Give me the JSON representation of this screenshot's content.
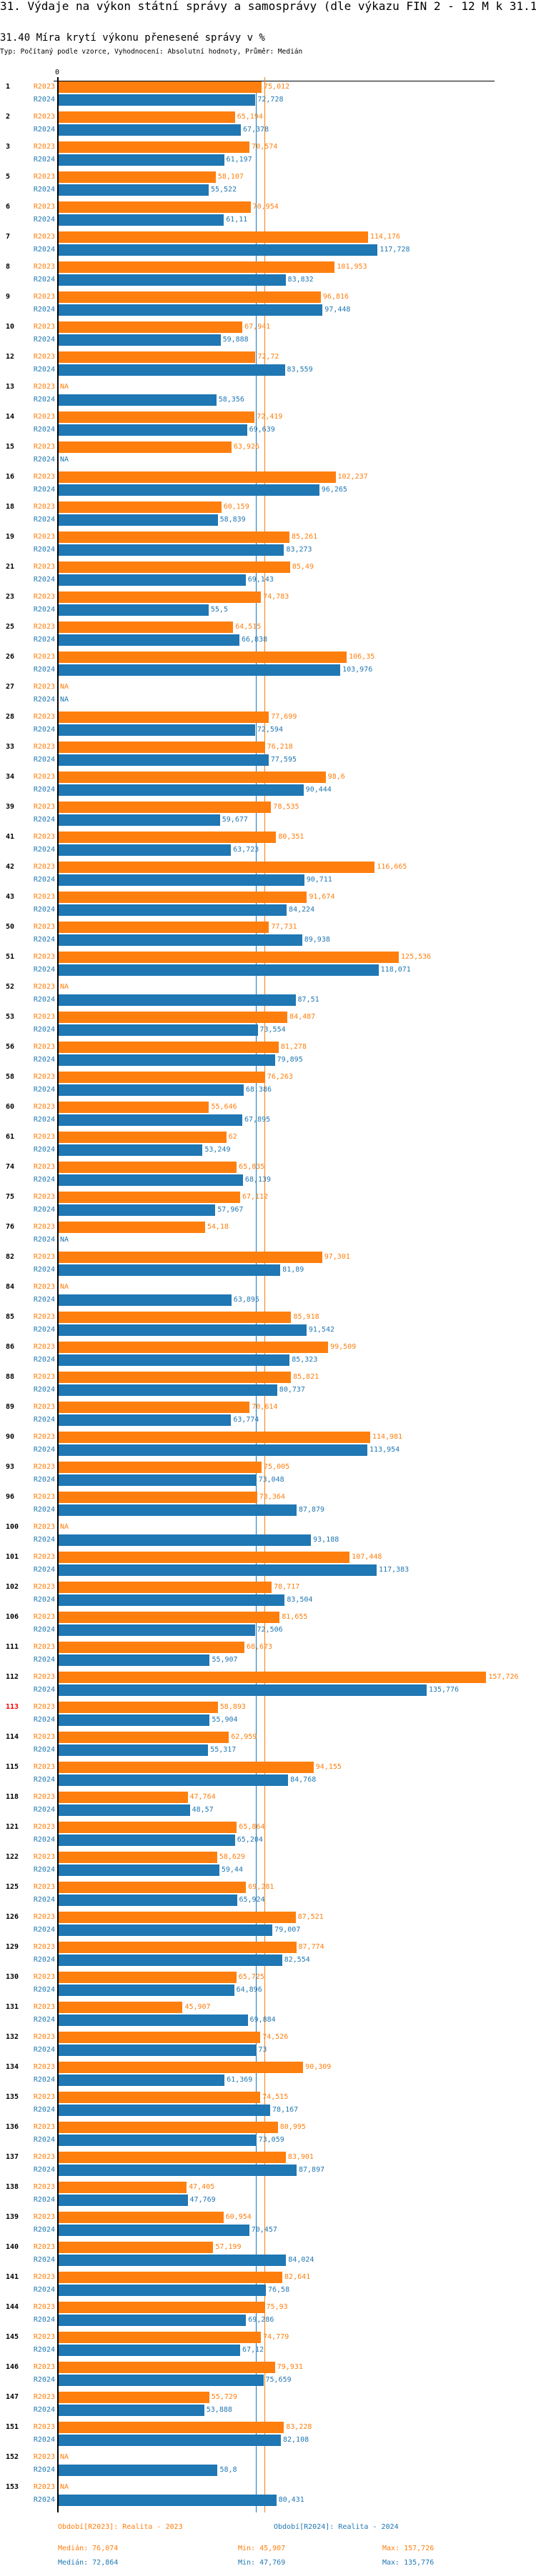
{
  "header": {
    "title": "31. Výdaje na výkon státní správy a samosprávy (dle výkazu FIN 2 - 12 M k 31.12.)",
    "heading": "31.40 Míra krytí výkonu přenesené správy v %",
    "subtitle": "Typ: Počítaný podle vzorce, Vyhodnocení: Absolutní hodnoty, Průměr: Medián"
  },
  "chart_data": {
    "type": "bar",
    "orientation": "horizontal",
    "axis_zero_label": "0",
    "xlim": [
      0,
      160
    ],
    "na_label": "NA",
    "highlighted_category": "113",
    "highlight_color": "#ff0000",
    "categories": [
      "1",
      "2",
      "3",
      "5",
      "6",
      "7",
      "8",
      "9",
      "10",
      "12",
      "13",
      "14",
      "15",
      "16",
      "18",
      "19",
      "21",
      "23",
      "25",
      "26",
      "27",
      "28",
      "33",
      "34",
      "39",
      "41",
      "42",
      "43",
      "50",
      "51",
      "52",
      "53",
      "56",
      "58",
      "60",
      "61",
      "74",
      "75",
      "76",
      "82",
      "84",
      "85",
      "86",
      "88",
      "89",
      "90",
      "93",
      "96",
      "100",
      "101",
      "102",
      "106",
      "111",
      "112",
      "113",
      "114",
      "115",
      "118",
      "121",
      "122",
      "125",
      "126",
      "129",
      "130",
      "131",
      "132",
      "134",
      "135",
      "136",
      "137",
      "138",
      "139",
      "140",
      "141",
      "144",
      "145",
      "146",
      "147",
      "151",
      "152",
      "153"
    ],
    "series": [
      {
        "name": "R2023",
        "color": "#ff7f0e",
        "median": 76.074,
        "values": [
          75.012,
          65.194,
          70.574,
          58.107,
          70.954,
          114.176,
          101.953,
          96.816,
          67.941,
          72.72,
          null,
          72.419,
          63.926,
          102.237,
          60.159,
          85.261,
          85.49,
          74.783,
          64.515,
          106.35,
          null,
          77.699,
          76.218,
          98.6,
          78.535,
          80.351,
          116.665,
          91.674,
          77.731,
          125.536,
          null,
          84.487,
          81.278,
          76.263,
          55.646,
          62,
          65.835,
          67.112,
          54.18,
          97.301,
          null,
          85.918,
          99.509,
          85.821,
          70.614,
          114.981,
          75.005,
          73.364,
          null,
          107.448,
          78.717,
          81.655,
          68.673,
          157.726,
          58.893,
          62.959,
          94.155,
          47.764,
          65.864,
          58.629,
          69.281,
          87.521,
          87.774,
          65.725,
          45.907,
          74.526,
          90.309,
          74.515,
          80.995,
          83.901,
          47.405,
          60.954,
          57.199,
          82.641,
          75.93,
          74.779,
          79.931,
          55.729,
          83.228,
          null,
          null
        ]
      },
      {
        "name": "R2024",
        "color": "#1f77b4",
        "median": 72.864,
        "values": [
          72.728,
          67.378,
          61.197,
          55.522,
          61.11,
          117.728,
          83.832,
          97.448,
          59.888,
          83.559,
          58.356,
          69.639,
          null,
          96.265,
          58.839,
          83.273,
          69.143,
          55.5,
          66.838,
          103.976,
          null,
          72.594,
          77.595,
          90.444,
          59.677,
          63.723,
          90.711,
          84.224,
          89.938,
          118.071,
          87.51,
          73.554,
          79.895,
          68.386,
          67.895,
          53.249,
          68.139,
          57.967,
          null,
          81.89,
          63.895,
          91.542,
          85.323,
          80.737,
          63.774,
          113.954,
          73.048,
          87.879,
          93.188,
          117.383,
          83.504,
          72.506,
          55.907,
          135.776,
          55.904,
          55.317,
          84.768,
          48.57,
          65.204,
          59.44,
          65.924,
          79.007,
          82.554,
          64.896,
          69.884,
          73,
          61.369,
          78.167,
          73.059,
          87.897,
          47.769,
          70.457,
          84.024,
          76.58,
          69.286,
          67.12,
          75.659,
          53.888,
          82.108,
          58.8,
          80.431
        ]
      }
    ],
    "legend": [
      {
        "label": "Období[R2023]: Realita - 2023",
        "color": "#ff7f0e"
      },
      {
        "label": "Období[R2024]: Realita - 2024",
        "color": "#1f77b4"
      }
    ],
    "stats": [
      {
        "color": "#ff7f0e",
        "median": "Medián: 76,074",
        "min": "Min: 45,907",
        "max": "Max: 157,726"
      },
      {
        "color": "#1f77b4",
        "median": "Medián: 72,864",
        "min": "Min: 47,769",
        "max": "Max: 135,776"
      }
    ]
  }
}
